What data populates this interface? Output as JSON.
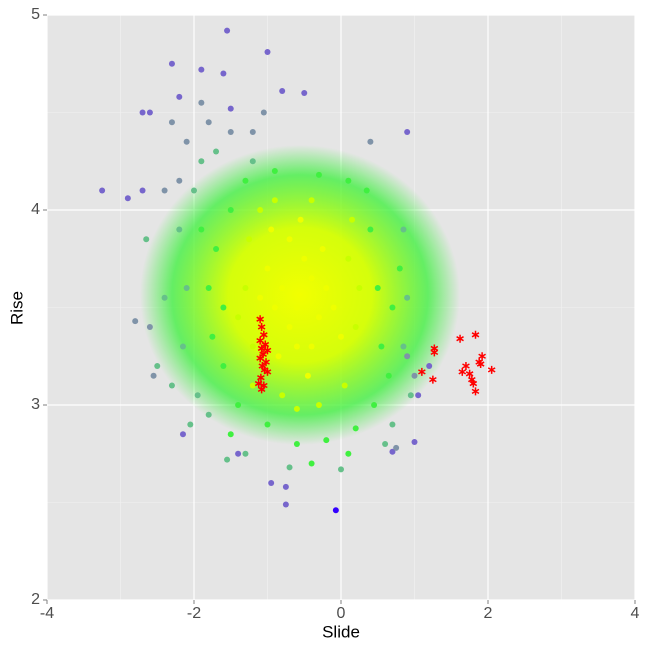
{
  "chart_data": {
    "type": "scatter",
    "x_label": "Slide",
    "y_label": "Rise",
    "xlim": [
      -4,
      4
    ],
    "ylim": [
      2,
      5
    ],
    "xticks": [
      -4,
      -2,
      0,
      2,
      4
    ],
    "yticks": [
      2,
      3,
      4,
      5
    ],
    "x_minor_grid": [
      -3,
      -1,
      1,
      3
    ],
    "y_minor_grid": [
      2.5,
      3.5,
      4.5
    ],
    "grid": true,
    "series": [
      {
        "color": "#7766cc",
        "marker": "circle",
        "x": [
          -1.55,
          -1.0,
          -2.3,
          -1.9,
          -1.6,
          -2.7,
          -2.6,
          -2.2,
          -1.5,
          -0.8,
          -0.5,
          0.9,
          -2.7,
          -2.9,
          -3.25,
          1.2,
          1.0,
          0.7,
          -0.75,
          -0.95,
          -1.4,
          -0.75,
          1.05,
          -2.15
        ],
        "y": [
          4.92,
          4.81,
          4.75,
          4.72,
          4.7,
          4.5,
          4.5,
          4.58,
          4.52,
          4.61,
          4.6,
          4.4,
          4.1,
          4.06,
          4.1,
          3.2,
          2.81,
          2.76,
          2.58,
          2.6,
          2.75,
          2.49,
          3.05,
          2.85
        ]
      },
      {
        "color": "#7f93a8",
        "marker": "circle",
        "x": [
          -2.1,
          -1.8,
          -1.5,
          -1.2,
          -2.2,
          -2.6,
          -2.55,
          -2.8,
          1.0,
          0.75,
          0.4,
          -2.4,
          -2.3,
          -1.05,
          0.9,
          -1.9
        ],
        "y": [
          4.35,
          4.45,
          4.4,
          4.4,
          4.15,
          3.4,
          3.15,
          3.43,
          3.15,
          2.78,
          4.35,
          4.1,
          4.45,
          4.5,
          3.25,
          4.55
        ]
      },
      {
        "color": "#66c08a",
        "marker": "circle",
        "x": [
          -2.1,
          -2.2,
          -2.0,
          -2.15,
          -1.95,
          -1.8,
          -1.3,
          -0.7,
          0.0,
          0.6,
          0.85,
          0.9,
          0.85,
          -2.4,
          -2.5,
          -1.9,
          -1.7,
          -1.2,
          -2.65,
          -2.3,
          -2.05,
          -1.55,
          0.95,
          0.7
        ],
        "y": [
          3.6,
          3.9,
          4.1,
          3.3,
          3.05,
          2.95,
          2.75,
          2.68,
          2.67,
          2.8,
          3.3,
          3.55,
          3.9,
          3.55,
          3.2,
          4.25,
          4.3,
          4.25,
          3.85,
          3.1,
          2.9,
          2.72,
          3.05,
          2.9
        ]
      },
      {
        "color": "#40f040",
        "marker": "circle",
        "x": [
          -1.6,
          -1.7,
          -1.5,
          -1.3,
          -0.9,
          -0.3,
          0.1,
          0.4,
          0.5,
          0.55,
          0.45,
          0.2,
          -0.2,
          -0.6,
          -1.0,
          -1.4,
          -1.6,
          -1.8,
          -1.75,
          -1.9,
          0.7,
          0.65,
          0.35,
          0.8,
          -1.5,
          0.1,
          -0.4
        ],
        "y": [
          3.5,
          3.8,
          4.0,
          4.15,
          4.2,
          4.18,
          4.15,
          3.9,
          3.6,
          3.3,
          3.0,
          2.88,
          2.82,
          2.8,
          2.9,
          3.0,
          3.2,
          3.6,
          3.35,
          3.9,
          3.5,
          3.15,
          4.1,
          3.7,
          2.85,
          2.75,
          2.7
        ]
      },
      {
        "color": "#c8ff00",
        "marker": "circle",
        "x": [
          -1.3,
          -1.2,
          -1.25,
          -0.9,
          -0.4,
          0.1,
          0.2,
          0.05,
          -0.3,
          -0.8,
          -1.2,
          -1.4,
          0.15,
          -0.6,
          -1.1,
          0.25
        ],
        "y": [
          3.6,
          3.3,
          3.85,
          4.05,
          4.05,
          3.75,
          3.4,
          3.1,
          3.0,
          3.05,
          3.1,
          3.45,
          3.95,
          2.98,
          4.0,
          3.6
        ]
      },
      {
        "color": "#eeff00",
        "marker": "circle",
        "x": [
          -0.8,
          -0.6,
          -0.4,
          -0.7,
          -0.5,
          -0.9,
          -0.3,
          -0.6,
          -0.2,
          -1.0,
          -0.7,
          -0.4,
          -0.85,
          -0.1,
          -0.55,
          -1.1,
          -0.25,
          -0.45,
          -0.95,
          0.0
        ],
        "y": [
          3.6,
          3.5,
          3.65,
          3.4,
          3.75,
          3.5,
          3.45,
          3.3,
          3.6,
          3.7,
          3.85,
          3.3,
          3.25,
          3.5,
          3.95,
          3.55,
          3.8,
          3.15,
          3.9,
          3.35
        ]
      },
      {
        "color": "#3300ff",
        "marker": "circle",
        "x": [
          -0.07
        ],
        "y": [
          2.46
        ]
      },
      {
        "color": "#ff0000",
        "marker": "star",
        "x": [
          -1.1,
          -1.08,
          -1.05,
          -1.1,
          -1.03,
          -1.08,
          -1.0,
          -1.06,
          -1.1,
          -1.02,
          -1.07,
          -1.04,
          -1.0,
          -1.09,
          -1.12,
          -1.05,
          -1.08,
          1.1,
          1.27,
          1.27,
          1.25,
          1.62,
          1.65,
          1.7,
          1.75,
          1.78,
          1.8,
          1.83,
          1.83,
          1.88,
          1.92,
          1.9,
          2.05
        ],
        "y": [
          3.44,
          3.4,
          3.36,
          3.33,
          3.31,
          3.29,
          3.28,
          3.26,
          3.24,
          3.22,
          3.2,
          3.18,
          3.17,
          3.14,
          3.11,
          3.1,
          3.08,
          3.17,
          3.29,
          3.27,
          3.13,
          3.34,
          3.17,
          3.2,
          3.16,
          3.13,
          3.11,
          3.07,
          3.36,
          3.22,
          3.25,
          3.21,
          3.18
        ]
      }
    ]
  }
}
